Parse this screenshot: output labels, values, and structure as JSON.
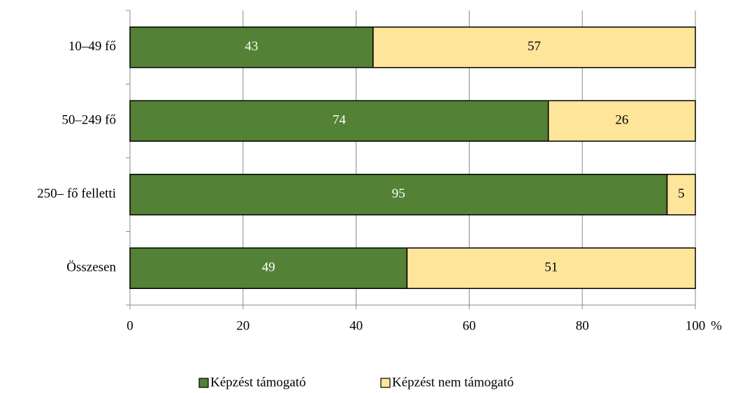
{
  "chart_data": {
    "type": "stacked_barh",
    "categories": [
      "10–49 fő",
      "50–249 fő",
      "250– fő felletti",
      "Összesen"
    ],
    "series": [
      {
        "name": "Képzést támogató",
        "color": "#538135",
        "label_color": "#ffffff",
        "values": [
          43,
          74,
          95,
          49
        ]
      },
      {
        "name": "Képzést nem támogató",
        "color": "#fee599",
        "label_color": "#000000",
        "values": [
          57,
          26,
          5,
          51
        ]
      }
    ],
    "x_label": "%",
    "xlim": [
      0,
      100
    ],
    "xticks": [
      0,
      20,
      40,
      60,
      80,
      100
    ],
    "grid": true,
    "legend": "bottom"
  }
}
